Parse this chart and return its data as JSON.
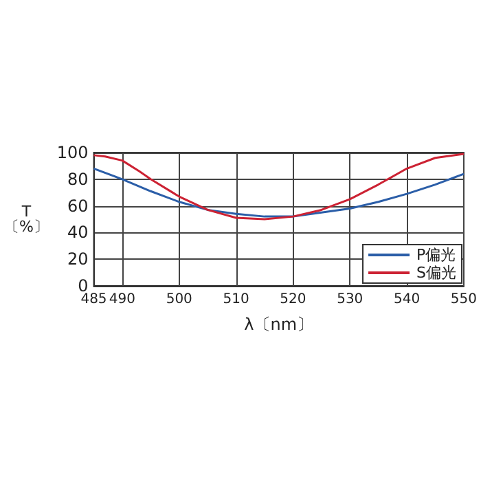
{
  "chart_data": {
    "type": "line",
    "xlabel": "λ〔nm〕",
    "ylabel": "T\n〔%〕",
    "xlim": [
      485,
      550
    ],
    "xticks": [
      485,
      490,
      500,
      510,
      520,
      530,
      540,
      550
    ],
    "ylim": [
      0,
      100
    ],
    "yticks": [
      0,
      20,
      40,
      60,
      80,
      100
    ],
    "grid": true,
    "legend": "bottom right",
    "marker": "none",
    "line_style": "solid",
    "series": [
      {
        "name": "P偏光",
        "color": "#2b5ea8",
        "x": [
          485,
          490,
          495,
          500,
          505,
          510,
          515,
          520,
          525,
          530,
          535,
          540,
          545,
          550
        ],
        "values": [
          88,
          80,
          71,
          63,
          57,
          54,
          52,
          52,
          55,
          58,
          63,
          69,
          76,
          84
        ]
      },
      {
        "name": "S偏光",
        "color": "#cc2233",
        "x": [
          485,
          487,
          490,
          493,
          495,
          500,
          505,
          510,
          515,
          520,
          525,
          530,
          535,
          540,
          545,
          550
        ],
        "values": [
          98,
          97,
          94,
          86,
          80,
          67,
          57,
          51,
          50,
          52,
          57,
          65,
          76,
          88,
          96,
          99
        ]
      }
    ]
  }
}
